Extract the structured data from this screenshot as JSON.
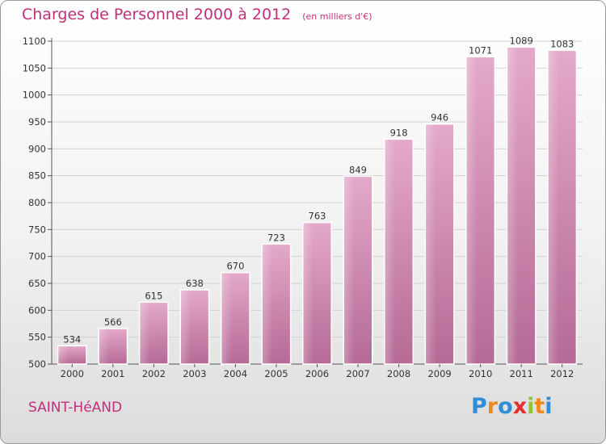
{
  "header": {
    "title": "Charges de Personnel 2000 à 2012",
    "subtitle": "(en milliers d'€)"
  },
  "footer": {
    "commune": "SAINT-HéAND",
    "logo_letters": [
      {
        "ch": "P",
        "color": "#2e8fd6"
      },
      {
        "ch": "r",
        "color": "#f08a1c"
      },
      {
        "ch": "o",
        "color": "#2e8fd6"
      },
      {
        "ch": "x",
        "color": "#e52e2e"
      },
      {
        "ch": "i",
        "color": "#8cc63f"
      },
      {
        "ch": "t",
        "color": "#f08a1c"
      },
      {
        "ch": "i",
        "color": "#2e8fd6"
      }
    ]
  },
  "chart_data": {
    "type": "bar",
    "title": "Charges de Personnel 2000 à 2012",
    "subtitle": "(en milliers d'€)",
    "categories": [
      "2000",
      "2001",
      "2002",
      "2003",
      "2004",
      "2005",
      "2006",
      "2007",
      "2008",
      "2009",
      "2010",
      "2011",
      "2012"
    ],
    "values": [
      534,
      566,
      615,
      638,
      670,
      723,
      763,
      849,
      918,
      946,
      1071,
      1089,
      1083
    ],
    "ylim": [
      500,
      1100
    ],
    "yticks": [
      500,
      550,
      600,
      650,
      700,
      750,
      800,
      850,
      900,
      950,
      1000,
      1050,
      1100
    ],
    "grid": true,
    "bar_color": "#c76f9e",
    "bar_highlight": "#e3a8c9"
  }
}
